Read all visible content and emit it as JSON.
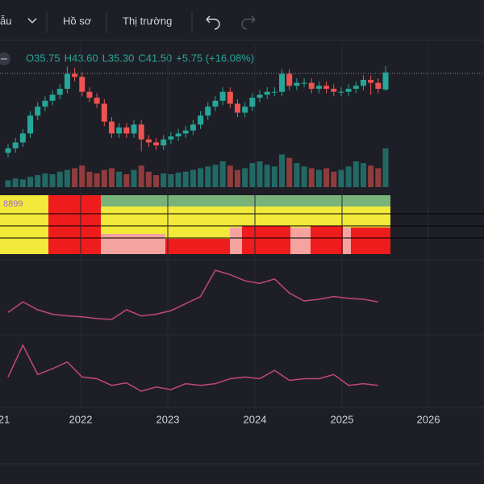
{
  "toolbar": {
    "layout_label": "ẫu",
    "profile": "Hồ sơ",
    "market": "Thị trường"
  },
  "legend": {
    "items": [
      "O35.75",
      "H43.60",
      "L35.30",
      "C41.50"
    ],
    "change": "+5.75 (+16.08%)"
  },
  "chart_data": {
    "type": "candlestick",
    "up_color": "#26a69a",
    "down_color": "#ef5350",
    "open": [
      14.5,
      16,
      18,
      21,
      27,
      30,
      32,
      34,
      36,
      41,
      40,
      35,
      33,
      31,
      25,
      21,
      23,
      21,
      24,
      19,
      18,
      17,
      19,
      20,
      21,
      22,
      24,
      27,
      30,
      32,
      35,
      31,
      28,
      30,
      33,
      34,
      35,
      35,
      41,
      37,
      38,
      38,
      36,
      37,
      36,
      35,
      35,
      36,
      37,
      39,
      38,
      35.75
    ],
    "high": [
      17.5,
      19.5,
      22.5,
      28.5,
      31.5,
      33.5,
      35.5,
      37.5,
      43.5,
      43,
      41.5,
      36.5,
      34.5,
      32.5,
      26.5,
      24.5,
      24.5,
      25.5,
      25.5,
      20.5,
      19.5,
      20.5,
      21.5,
      22.5,
      23.5,
      25.5,
      28.5,
      31.5,
      33.5,
      36.5,
      36.5,
      32.5,
      31.5,
      34.5,
      35.5,
      36.5,
      36.5,
      42.5,
      42.5,
      39.5,
      39.5,
      39.5,
      38.5,
      38.5,
      37.5,
      36.5,
      37.5,
      38.5,
      40.5,
      40.5,
      39.5,
      43.6
    ],
    "low": [
      13,
      14.5,
      16.5,
      19.5,
      25.5,
      28.5,
      30.5,
      32.5,
      34.5,
      38.5,
      33.5,
      31.5,
      29.5,
      23.5,
      19.5,
      19.5,
      19.5,
      19.5,
      15,
      16.5,
      15.5,
      15.5,
      17.5,
      18.5,
      19.5,
      20.5,
      22.5,
      25.5,
      28.5,
      30.5,
      29.5,
      26.5,
      26.5,
      28.5,
      31.5,
      32.5,
      33.5,
      33.5,
      35.5,
      35.5,
      36.5,
      34.5,
      34.5,
      34.5,
      33.5,
      33.5,
      33.5,
      34.5,
      35.5,
      34,
      34.5,
      35.3
    ],
    "close": [
      16,
      18,
      21,
      27,
      30,
      32,
      34,
      36,
      41,
      40,
      35,
      33,
      31,
      25,
      21,
      23,
      21,
      24,
      19,
      18,
      17,
      19,
      20,
      21,
      22,
      24,
      27,
      30,
      32,
      35,
      31,
      28,
      30,
      33,
      34,
      35,
      35,
      41,
      37,
      38,
      38,
      36,
      37,
      36,
      35,
      35,
      36,
      37,
      39,
      38,
      36,
      41.5
    ],
    "volume": [
      8,
      10,
      9,
      12,
      14,
      16,
      15,
      18,
      20,
      22,
      25,
      18,
      16,
      20,
      22,
      18,
      15,
      20,
      25,
      18,
      14,
      16,
      15,
      17,
      18,
      20,
      22,
      24,
      26,
      30,
      25,
      20,
      22,
      28,
      30,
      26,
      24,
      38,
      34,
      28,
      24,
      22,
      20,
      22,
      18,
      20,
      24,
      30,
      28,
      25,
      22,
      45
    ],
    "indicator_label": "8899",
    "pane2": {
      "color": "#c2477a",
      "values": [
        12,
        24,
        15,
        10,
        8,
        7,
        5,
        4,
        15,
        8,
        10,
        14,
        22,
        30,
        60,
        55,
        48,
        45,
        50,
        34,
        25,
        27,
        30,
        28,
        27,
        24
      ]
    },
    "pane3": {
      "color": "#c2477a",
      "values": [
        32,
        70,
        35,
        42,
        50,
        32,
        30,
        22,
        25,
        15,
        20,
        17,
        24,
        22,
        24,
        30,
        32,
        30,
        40,
        28,
        30,
        30,
        35,
        22,
        24,
        22
      ]
    },
    "x_labels": [
      "21",
      "2022",
      "2023",
      "2024",
      "2025",
      "2026"
    ]
  }
}
